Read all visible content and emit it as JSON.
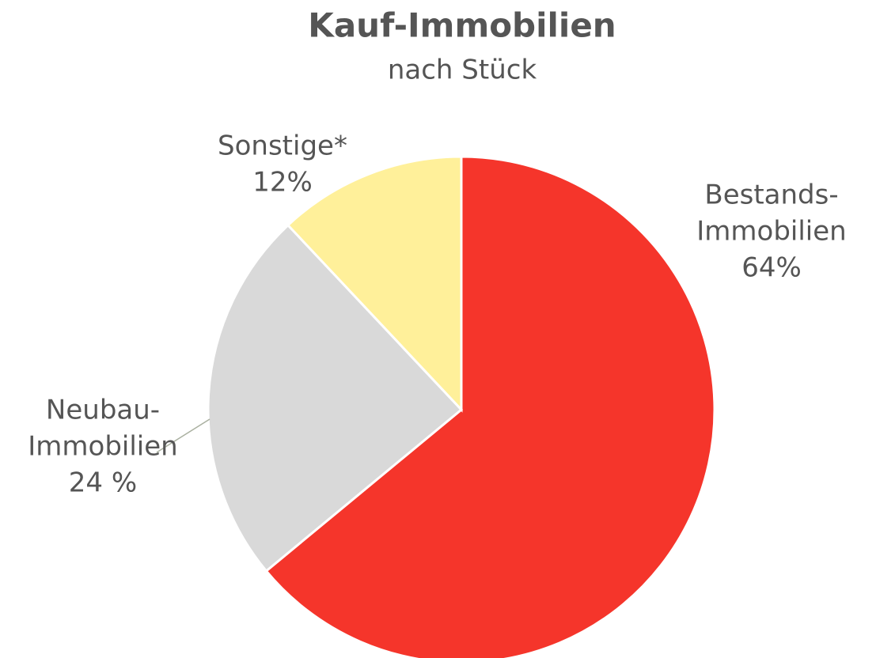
{
  "chart_data": {
    "type": "pie",
    "title": "Kauf-Immobilien",
    "subtitle": "nach Stück",
    "categories": [
      [
        "Bestands-",
        "Immobilien"
      ],
      [
        "Neubau-",
        "Immobilien"
      ],
      [
        "Sonstige*"
      ]
    ],
    "values": [
      64,
      24,
      12
    ],
    "value_labels": [
      "64%",
      "24 %",
      "12%"
    ],
    "colors": [
      "#f5352b",
      "#d9d9d9",
      "#fff09a"
    ]
  }
}
